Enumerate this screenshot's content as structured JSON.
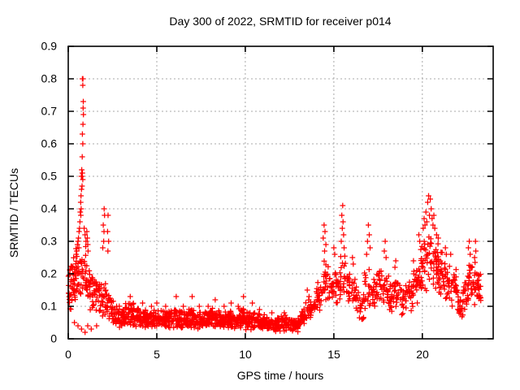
{
  "chart_data": {
    "type": "scatter",
    "title": "Day 300 of 2022, SRMTID for receiver p014",
    "xlabel": "GPS time / hours",
    "ylabel": "SRMTID / TECUs",
    "xlim": [
      0,
      24
    ],
    "ylim": [
      0,
      0.9
    ],
    "xticks": [
      0,
      5,
      10,
      15,
      20
    ],
    "yticks": [
      0,
      0.1,
      0.2,
      0.3,
      0.4,
      0.5,
      0.6,
      0.7,
      0.8,
      0.9
    ],
    "xtick_labels": [
      "0",
      "5",
      "10",
      "15",
      "20"
    ],
    "ytick_labels": [
      "0",
      "0.1",
      "0.2",
      "0.3",
      "0.4",
      "0.5",
      "0.6",
      "0.7",
      "0.8",
      "0.9"
    ],
    "grid": true,
    "legend": "none",
    "marker": "plus",
    "colors": {
      "marker": "#ff0000",
      "grid": "#a8a8a8",
      "border": "#000000",
      "background": "#ffffff",
      "text": "#000000"
    },
    "envelope_format": "[t_start_hours, t_end_hours, value_min, value_max, point_count] — dense scatter band envelopes read from the plot",
    "envelope_bins": [
      [
        0.0,
        0.15,
        0.08,
        0.22,
        16
      ],
      [
        0.15,
        0.4,
        0.08,
        0.26,
        22
      ],
      [
        0.4,
        0.7,
        0.1,
        0.3,
        24
      ],
      [
        0.7,
        1.0,
        0.1,
        0.3,
        22
      ],
      [
        1.0,
        1.3,
        0.08,
        0.25,
        22
      ],
      [
        1.3,
        1.6,
        0.07,
        0.22,
        22
      ],
      [
        1.6,
        1.9,
        0.07,
        0.19,
        20
      ],
      [
        1.9,
        2.2,
        0.06,
        0.2,
        20
      ],
      [
        2.2,
        2.5,
        0.05,
        0.15,
        18
      ],
      [
        2.5,
        2.8,
        0.04,
        0.12,
        22
      ],
      [
        2.8,
        3.1,
        0.03,
        0.11,
        26
      ],
      [
        3.1,
        3.4,
        0.04,
        0.11,
        26
      ],
      [
        3.4,
        3.7,
        0.03,
        0.12,
        28
      ],
      [
        3.7,
        4.0,
        0.03,
        0.1,
        28
      ],
      [
        4.0,
        4.4,
        0.03,
        0.1,
        32
      ],
      [
        4.4,
        4.8,
        0.03,
        0.09,
        32
      ],
      [
        4.8,
        5.2,
        0.03,
        0.09,
        32
      ],
      [
        5.2,
        5.6,
        0.025,
        0.09,
        32
      ],
      [
        5.6,
        6.0,
        0.03,
        0.1,
        32
      ],
      [
        6.0,
        6.4,
        0.03,
        0.1,
        32
      ],
      [
        6.4,
        6.8,
        0.025,
        0.09,
        32
      ],
      [
        6.8,
        7.2,
        0.03,
        0.1,
        32
      ],
      [
        7.2,
        7.6,
        0.025,
        0.09,
        32
      ],
      [
        7.6,
        8.0,
        0.03,
        0.09,
        32
      ],
      [
        8.0,
        8.4,
        0.03,
        0.1,
        32
      ],
      [
        8.4,
        8.8,
        0.025,
        0.09,
        32
      ],
      [
        8.8,
        9.2,
        0.03,
        0.09,
        32
      ],
      [
        9.2,
        9.6,
        0.025,
        0.085,
        32
      ],
      [
        9.6,
        10.0,
        0.03,
        0.1,
        32
      ],
      [
        10.0,
        10.4,
        0.02,
        0.085,
        32
      ],
      [
        10.4,
        10.8,
        0.025,
        0.09,
        32
      ],
      [
        10.8,
        11.2,
        0.02,
        0.08,
        32
      ],
      [
        11.2,
        11.6,
        0.02,
        0.075,
        32
      ],
      [
        11.6,
        12.0,
        0.015,
        0.07,
        32
      ],
      [
        12.0,
        12.4,
        0.02,
        0.075,
        32
      ],
      [
        12.4,
        12.8,
        0.015,
        0.07,
        30
      ],
      [
        12.8,
        13.1,
        0.02,
        0.065,
        22
      ],
      [
        13.1,
        13.4,
        0.04,
        0.1,
        20
      ],
      [
        13.4,
        13.7,
        0.05,
        0.13,
        20
      ],
      [
        13.7,
        14.0,
        0.06,
        0.13,
        18
      ],
      [
        14.0,
        14.3,
        0.08,
        0.18,
        20
      ],
      [
        14.3,
        14.7,
        0.1,
        0.26,
        22
      ],
      [
        14.7,
        15.0,
        0.1,
        0.22,
        18
      ],
      [
        15.0,
        15.3,
        0.1,
        0.24,
        18
      ],
      [
        15.3,
        15.7,
        0.1,
        0.28,
        22
      ],
      [
        15.7,
        16.0,
        0.09,
        0.22,
        18
      ],
      [
        16.0,
        16.3,
        0.08,
        0.2,
        18
      ],
      [
        16.3,
        16.7,
        0.05,
        0.15,
        18
      ],
      [
        16.7,
        17.1,
        0.08,
        0.24,
        20
      ],
      [
        17.1,
        17.4,
        0.08,
        0.2,
        18
      ],
      [
        17.4,
        17.8,
        0.09,
        0.23,
        20
      ],
      [
        17.8,
        18.1,
        0.08,
        0.22,
        18
      ],
      [
        18.1,
        18.4,
        0.07,
        0.17,
        18
      ],
      [
        18.4,
        18.8,
        0.09,
        0.21,
        20
      ],
      [
        18.8,
        19.1,
        0.07,
        0.17,
        18
      ],
      [
        19.1,
        19.5,
        0.08,
        0.19,
        20
      ],
      [
        19.5,
        19.8,
        0.1,
        0.24,
        18
      ],
      [
        19.8,
        20.1,
        0.12,
        0.3,
        22
      ],
      [
        20.1,
        20.5,
        0.14,
        0.36,
        26
      ],
      [
        20.5,
        20.9,
        0.13,
        0.33,
        26
      ],
      [
        20.9,
        21.2,
        0.11,
        0.28,
        22
      ],
      [
        21.2,
        21.6,
        0.1,
        0.25,
        22
      ],
      [
        21.6,
        22.0,
        0.08,
        0.22,
        22
      ],
      [
        22.0,
        22.3,
        0.05,
        0.15,
        20
      ],
      [
        22.3,
        22.6,
        0.08,
        0.2,
        20
      ],
      [
        22.6,
        23.0,
        0.09,
        0.25,
        26
      ],
      [
        23.0,
        23.3,
        0.1,
        0.22,
        24
      ]
    ],
    "spike_points": [
      [
        0.8,
        0.8
      ],
      [
        0.83,
        0.8
      ],
      [
        0.82,
        0.78
      ],
      [
        0.85,
        0.73
      ],
      [
        0.84,
        0.71
      ],
      [
        0.86,
        0.69
      ],
      [
        0.83,
        0.66
      ],
      [
        0.8,
        0.63
      ],
      [
        0.82,
        0.6
      ],
      [
        0.79,
        0.56
      ],
      [
        0.76,
        0.52
      ],
      [
        0.8,
        0.51
      ],
      [
        0.74,
        0.5
      ],
      [
        0.77,
        0.5
      ],
      [
        0.82,
        0.49
      ],
      [
        0.78,
        0.47
      ],
      [
        0.75,
        0.46
      ],
      [
        0.72,
        0.44
      ],
      [
        0.7,
        0.42
      ],
      [
        0.73,
        0.4
      ],
      [
        0.68,
        0.39
      ],
      [
        0.71,
        0.38
      ],
      [
        0.66,
        0.36
      ],
      [
        0.64,
        0.34
      ],
      [
        0.61,
        0.33
      ],
      [
        0.58,
        0.31
      ],
      [
        0.55,
        0.3
      ],
      [
        0.52,
        0.29
      ],
      [
        0.6,
        0.28
      ],
      [
        0.48,
        0.27
      ],
      [
        0.45,
        0.26
      ],
      [
        0.9,
        0.34
      ],
      [
        0.95,
        0.32
      ],
      [
        1.0,
        0.3
      ],
      [
        1.05,
        0.33
      ],
      [
        1.08,
        0.31
      ],
      [
        1.1,
        0.29
      ],
      [
        1.12,
        0.27
      ],
      [
        1.95,
        0.28
      ],
      [
        1.98,
        0.35
      ],
      [
        2.0,
        0.3
      ],
      [
        2.02,
        0.33
      ],
      [
        2.03,
        0.4
      ],
      [
        2.05,
        0.38
      ],
      [
        2.22,
        0.33
      ],
      [
        2.24,
        0.27
      ],
      [
        2.25,
        0.38
      ],
      [
        2.28,
        0.3
      ],
      [
        0.35,
        0.05
      ],
      [
        0.55,
        0.04
      ],
      [
        0.75,
        0.03
      ],
      [
        0.95,
        0.02
      ],
      [
        1.1,
        0.04
      ],
      [
        1.3,
        0.03
      ],
      [
        1.6,
        0.04
      ],
      [
        3.5,
        0.13
      ],
      [
        4.2,
        0.11
      ],
      [
        4.7,
        0.1
      ],
      [
        5.0,
        0.11
      ],
      [
        5.5,
        0.1
      ],
      [
        6.1,
        0.13
      ],
      [
        6.5,
        0.1
      ],
      [
        7.0,
        0.13
      ],
      [
        7.4,
        0.1
      ],
      [
        7.9,
        0.1
      ],
      [
        8.3,
        0.12
      ],
      [
        8.8,
        0.1
      ],
      [
        9.2,
        0.11
      ],
      [
        9.6,
        0.1
      ],
      [
        9.9,
        0.13
      ],
      [
        10.4,
        0.11
      ],
      [
        10.8,
        0.09
      ],
      [
        11.5,
        0.08
      ],
      [
        12.2,
        0.08
      ],
      [
        13.5,
        0.15
      ],
      [
        13.6,
        0.13
      ],
      [
        14.4,
        0.31
      ],
      [
        14.45,
        0.35
      ],
      [
        14.48,
        0.27
      ],
      [
        14.5,
        0.33
      ],
      [
        14.55,
        0.29
      ],
      [
        15.0,
        0.28
      ],
      [
        15.05,
        0.26
      ],
      [
        15.42,
        0.3
      ],
      [
        15.45,
        0.38
      ],
      [
        15.48,
        0.34
      ],
      [
        15.5,
        0.41
      ],
      [
        15.52,
        0.36
      ],
      [
        15.55,
        0.32
      ],
      [
        15.58,
        0.28
      ],
      [
        16.05,
        0.25
      ],
      [
        16.1,
        0.23
      ],
      [
        16.85,
        0.26
      ],
      [
        16.9,
        0.3
      ],
      [
        16.95,
        0.35
      ],
      [
        17.0,
        0.32
      ],
      [
        17.05,
        0.28
      ],
      [
        17.85,
        0.27
      ],
      [
        17.9,
        0.3
      ],
      [
        17.95,
        0.25
      ],
      [
        18.45,
        0.22
      ],
      [
        18.5,
        0.24
      ],
      [
        19.5,
        0.24
      ],
      [
        19.8,
        0.32
      ],
      [
        19.85,
        0.3
      ],
      [
        20.05,
        0.34
      ],
      [
        20.1,
        0.37
      ],
      [
        20.15,
        0.35
      ],
      [
        20.2,
        0.39
      ],
      [
        20.25,
        0.36
      ],
      [
        20.3,
        0.42
      ],
      [
        20.35,
        0.44
      ],
      [
        20.4,
        0.38
      ],
      [
        20.45,
        0.43
      ],
      [
        20.5,
        0.4
      ],
      [
        20.55,
        0.37
      ],
      [
        20.6,
        0.35
      ],
      [
        20.65,
        0.38
      ],
      [
        20.7,
        0.34
      ],
      [
        20.8,
        0.32
      ],
      [
        20.9,
        0.31
      ],
      [
        21.3,
        0.28
      ],
      [
        21.35,
        0.26
      ],
      [
        21.6,
        0.26
      ],
      [
        22.6,
        0.28
      ],
      [
        22.65,
        0.3
      ],
      [
        22.7,
        0.26
      ],
      [
        22.95,
        0.25
      ],
      [
        23.0,
        0.3
      ],
      [
        23.02,
        0.27
      ]
    ]
  }
}
